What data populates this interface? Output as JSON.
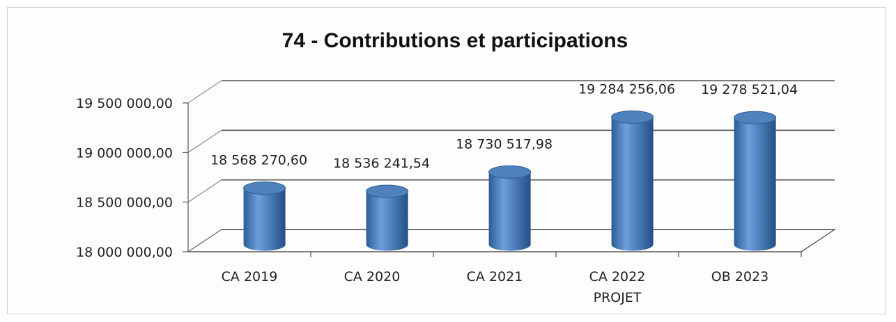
{
  "chart_data": {
    "type": "bar",
    "style": "3d-cylinder",
    "title": "74 - Contributions et participations",
    "categories": [
      [
        "CA 2019"
      ],
      [
        "CA 2020"
      ],
      [
        "CA 2021"
      ],
      [
        "CA 2022",
        "PROJET"
      ],
      [
        "OB 2023"
      ]
    ],
    "values": [
      18568270.6,
      18536241.54,
      18730517.98,
      19284256.06,
      19278521.04
    ],
    "data_labels": [
      "18 568 270,60",
      "18 536 241,54",
      "18 730 517,98",
      "19 284 256,06",
      "19 278 521,04"
    ],
    "y_ticks": [
      18000000,
      18500000,
      19000000,
      19500000
    ],
    "y_tick_labels": [
      "18 000 000,00",
      "18 500 000,00",
      "19 000 000,00",
      "19 500 000,00"
    ],
    "ylim": [
      18000000,
      19500000
    ],
    "grid": true,
    "legend": "none",
    "colors": {
      "bar": "#4f81bd",
      "bar_dark": "#2a5d96",
      "bar_light": "#8fb5e4",
      "grid": "#444444"
    }
  }
}
